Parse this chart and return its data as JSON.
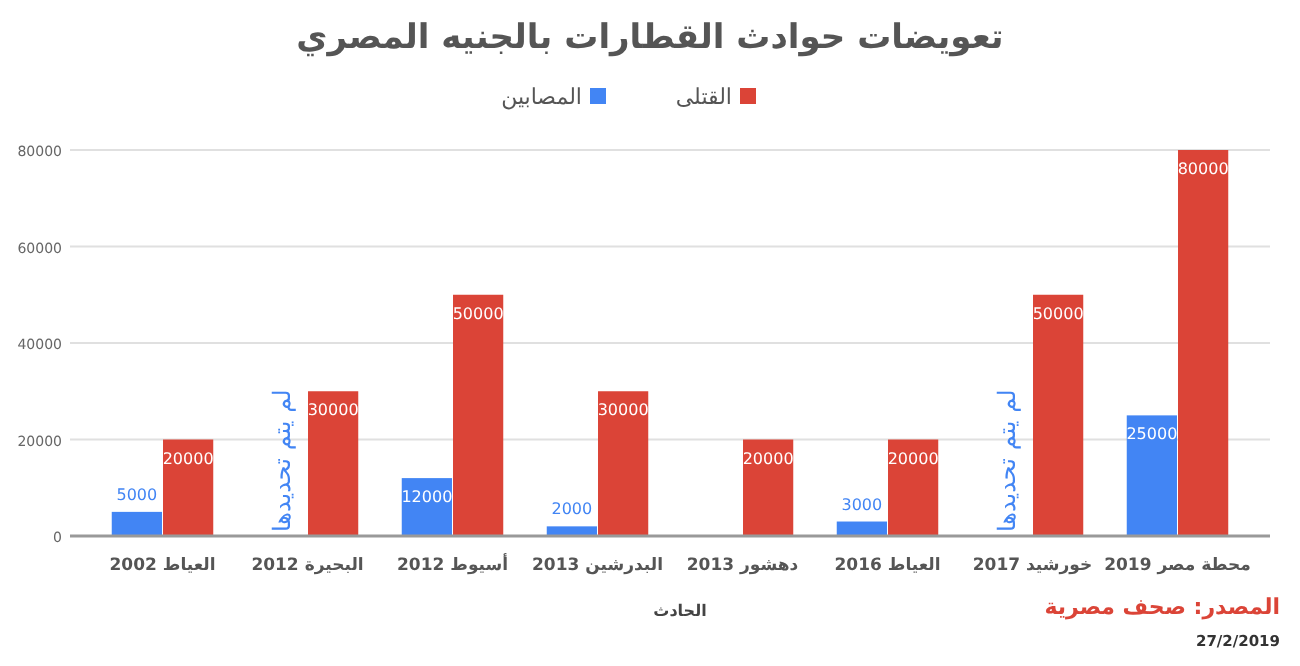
{
  "chart_data": {
    "type": "bar",
    "title": "تعويضات حوادث القطارات بالجنيه المصري",
    "xlabel": "الحادث",
    "categories": [
      "العياط 2002",
      "البحيرة 2012",
      "أسيوط 2012",
      "البدرشين 2013",
      "دهشور 2013",
      "العياط 2016",
      "خورشيد 2017",
      "محطة مصر 2019"
    ],
    "series": [
      {
        "name": "المصابين",
        "color": "#4285f4",
        "values": [
          5000,
          null,
          12000,
          2000,
          null,
          3000,
          null,
          25000
        ]
      },
      {
        "name": "القتلى",
        "color": "#db4437",
        "values": [
          20000,
          30000,
          50000,
          30000,
          20000,
          20000,
          50000,
          80000
        ]
      }
    ],
    "ylim": [
      0,
      80000
    ],
    "yticks": [
      0,
      20000,
      40000,
      60000,
      80000
    ],
    "grid": "y",
    "legend": "top",
    "data_labels": true,
    "annotations": [
      {
        "text": "لم يتم تحديدها",
        "x": "البحيرة 2012",
        "y": 0
      },
      {
        "text": "لم يتم تحديدها",
        "x": "خورشيد 2017",
        "y": 0
      },
      "المصدر: صحف مصرية",
      "27/2/2019"
    ]
  }
}
